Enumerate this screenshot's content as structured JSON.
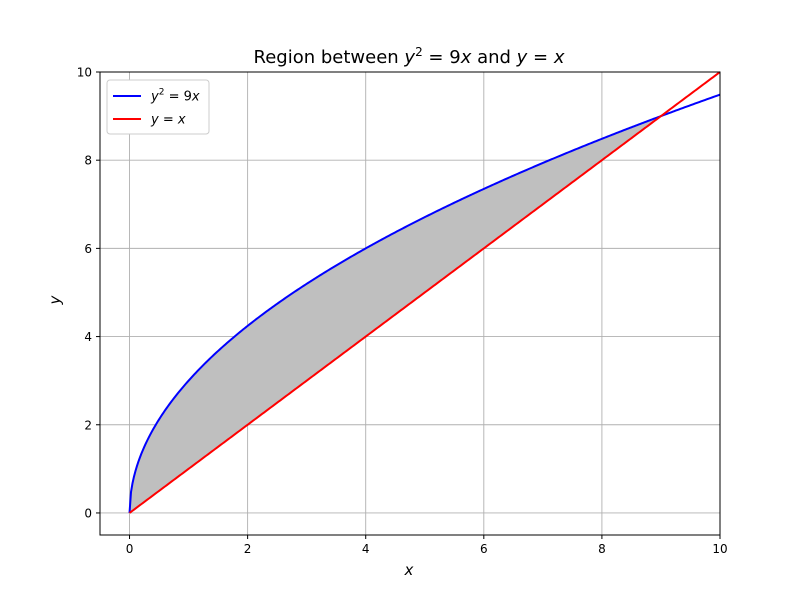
{
  "chart_data": {
    "type": "line",
    "title": "Region between y² = 9x and y = x",
    "xlabel": "x",
    "ylabel": "y",
    "xlim": [
      -0.5,
      10
    ],
    "ylim": [
      -0.5,
      10
    ],
    "x_ticks": [
      0,
      2,
      4,
      6,
      8,
      10
    ],
    "y_ticks": [
      0,
      2,
      4,
      6,
      8,
      10
    ],
    "grid": true,
    "legend_position": "top-left",
    "series": [
      {
        "name": "y² = 9x",
        "color": "#0000ff",
        "formula": "y = 3*sqrt(x)",
        "x_range": [
          0,
          10
        ]
      },
      {
        "name": "y = x",
        "color": "#ff0000",
        "formula": "y = x",
        "x_range": [
          0,
          10
        ]
      }
    ],
    "shaded_region": {
      "between": [
        "y² = 9x",
        "y = x"
      ],
      "x_range": [
        0,
        9
      ],
      "color": "#bfbfbf"
    },
    "intersections": [
      [
        0,
        0
      ],
      [
        9,
        9
      ]
    ]
  }
}
